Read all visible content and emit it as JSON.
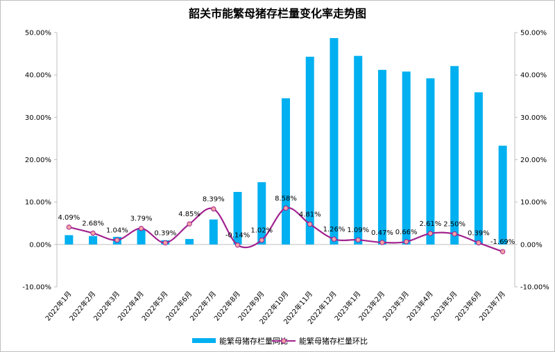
{
  "chart_data": {
    "type": "bar",
    "title": "韶关市能繁母猪存栏量变化率走势图",
    "categories": [
      "2022年1月",
      "2022年2月",
      "2022年3月",
      "2022年4月",
      "2022年5月",
      "2022年6月",
      "2022年7月",
      "2022年8月",
      "2022年9月",
      "2022年10月",
      "2022年11月",
      "2022年12月",
      "2023年1月",
      "2023年2月",
      "2023年3月",
      "2023年4月",
      "2023年5月",
      "2023年6月",
      "2023年7月"
    ],
    "series": [
      {
        "name": "能繁母猪存栏量同比",
        "type": "bar",
        "axis": "left",
        "color": "#00b0f0",
        "values": [
          2.2,
          2.0,
          1.8,
          3.5,
          1.0,
          1.3,
          5.9,
          12.4,
          14.7,
          34.5,
          44.3,
          48.7,
          44.5,
          41.2,
          40.8,
          39.2,
          42.1,
          35.9,
          23.3
        ]
      },
      {
        "name": "能繁母猪存栏量环比",
        "type": "line",
        "axis": "right",
        "color": "#a2238f",
        "marker_color": "#f4a3a3",
        "values": [
          4.09,
          2.68,
          1.04,
          3.79,
          0.39,
          4.85,
          8.39,
          -0.14,
          1.02,
          8.58,
          4.81,
          1.26,
          1.09,
          0.47,
          0.66,
          2.61,
          2.5,
          0.39,
          -1.69
        ],
        "labels": [
          "4.09%",
          "2.68%",
          "1.04%",
          "3.79%",
          "0.39%",
          "4.85%",
          "8.39%",
          "-0.14%",
          "1.02%",
          "8.58%",
          "4.81%",
          "1.26%",
          "1.09%",
          "0.47%",
          "0.66%",
          "2.61%",
          "2.50%",
          "0.39%",
          "-1.69%"
        ]
      }
    ],
    "left_axis": {
      "ylim": [
        -10,
        50
      ],
      "ticks": [
        "-10.00%",
        "0.00%",
        "10.00%",
        "20.00%",
        "30.00%",
        "40.00%",
        "50.00%"
      ]
    },
    "right_axis": {
      "ylim": [
        -10,
        50
      ],
      "ticks": [
        "-10.00%",
        "0.00%",
        "10.00%",
        "20.00%",
        "30.00%",
        "40.00%",
        "50.00%"
      ]
    },
    "xlabel": "",
    "ylabel": "",
    "grid": false,
    "legend_position": "bottom"
  }
}
